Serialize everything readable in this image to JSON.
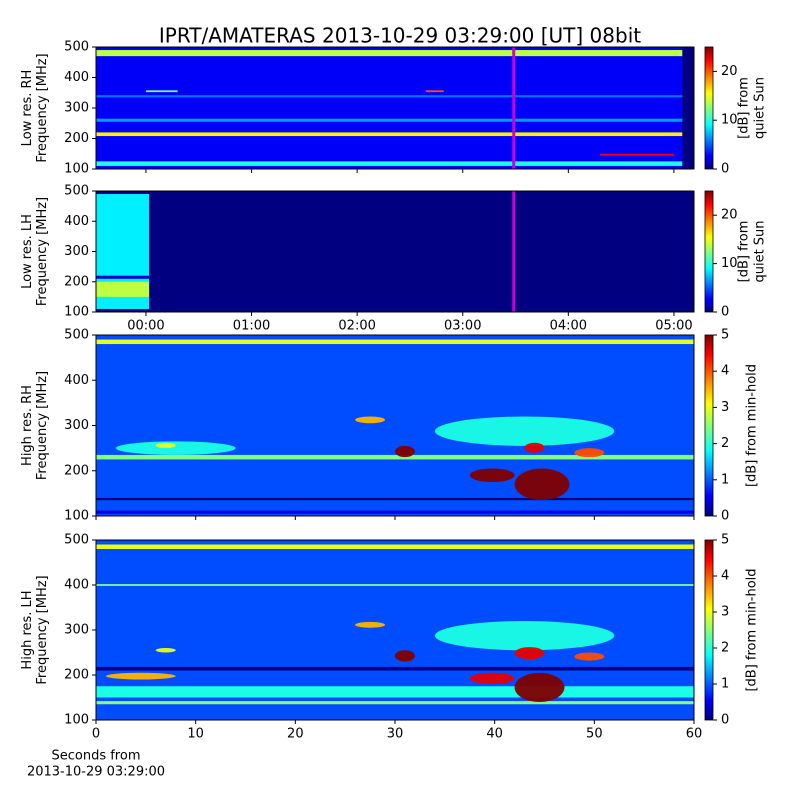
{
  "chart_data": [
    {
      "type": "spectrogram",
      "title": "IPRT/AMATERAS 2013-10-29 03:29:00 [UT]   08bit",
      "ylabel": [
        "Low res. RH",
        "Frequency [MHz]"
      ],
      "xlim": [
        -0.473,
        5.19
      ],
      "xticks": [
        0,
        1,
        2,
        3,
        4,
        5
      ],
      "xtick_labels": false,
      "ylim": [
        100,
        500
      ],
      "yticks": [
        100,
        200,
        300,
        400,
        500
      ],
      "background": 3,
      "marker_x": 3.483,
      "marker_color": "#cc00cc",
      "colorbar": {
        "label": [
          "[dB] from",
          "quiet Sun"
        ],
        "lim": [
          0,
          25
        ],
        "ticks": [
          0,
          10,
          20
        ]
      },
      "cells": [
        {
          "x": [
            -0.473,
            5.08
          ],
          "y": [
            470,
            490
          ],
          "value": 14
        },
        {
          "x": [
            -0.473,
            5.08
          ],
          "y": [
            208,
            220
          ],
          "value": 16
        },
        {
          "x": [
            -0.473,
            5.08
          ],
          "y": [
            110,
            125
          ],
          "value": 10
        },
        {
          "x": [
            -0.473,
            5.08
          ],
          "y": [
            255,
            265
          ],
          "value": 7
        },
        {
          "x": [
            -0.473,
            5.08
          ],
          "y": [
            335,
            342
          ],
          "value": 6
        },
        {
          "x": [
            0.0,
            0.3
          ],
          "y": [
            352,
            358
          ],
          "value": 12
        },
        {
          "x": [
            2.65,
            2.82
          ],
          "y": [
            352,
            358
          ],
          "value": 20
        },
        {
          "x": [
            4.3,
            5.0
          ],
          "y": [
            144,
            150
          ],
          "value": 22
        },
        {
          "x": [
            5.08,
            5.19
          ],
          "y": [
            100,
            500
          ],
          "value": 0
        }
      ]
    },
    {
      "type": "spectrogram",
      "ylabel": [
        "Low res. LH",
        "Frequency [MHz]"
      ],
      "xlim": [
        -0.473,
        5.19
      ],
      "xticks": [
        {
          "value": 0,
          "label": "00:00"
        },
        {
          "value": 1,
          "label": "01:00"
        },
        {
          "value": 2,
          "label": "02:00"
        },
        {
          "value": 3,
          "label": "03:00"
        },
        {
          "value": 4,
          "label": "04:00"
        },
        {
          "value": 5,
          "label": "05:00"
        }
      ],
      "xtick_labels": true,
      "ylim": [
        100,
        500
      ],
      "yticks": [
        100,
        200,
        300,
        400,
        500
      ],
      "background": 0,
      "marker_x": 3.483,
      "marker_color": "#cc00cc",
      "colorbar": {
        "label": [
          "[dB] from",
          "quiet Sun"
        ],
        "lim": [
          0,
          25
        ],
        "ticks": [
          0,
          10,
          20
        ]
      },
      "cells": [
        {
          "x": [
            -0.473,
            0.03
          ],
          "y": [
            110,
            490
          ],
          "value": 9
        },
        {
          "x": [
            -0.473,
            0.03
          ],
          "y": [
            150,
            200
          ],
          "value": 14
        },
        {
          "x": [
            -0.473,
            0.03
          ],
          "y": [
            210,
            220
          ],
          "value": 2
        }
      ]
    },
    {
      "type": "spectrogram",
      "ylabel": [
        "High res. RH",
        "Frequency [MHz]"
      ],
      "xlim": [
        0,
        60
      ],
      "xticks": [
        0,
        10,
        20,
        30,
        40,
        50,
        60
      ],
      "xtick_labels": false,
      "ylim": [
        100,
        500
      ],
      "yticks": [
        100,
        200,
        300,
        400,
        500
      ],
      "background": 1,
      "colorbar": {
        "label": [
          "[dB] from min-hold"
        ],
        "lim": [
          0,
          5
        ],
        "ticks": [
          0,
          1,
          2,
          3,
          4,
          5
        ]
      },
      "cells": [
        {
          "x": [
            0,
            60
          ],
          "y": [
            480,
            490
          ],
          "value": 3
        },
        {
          "x": [
            0,
            60
          ],
          "y": [
            225,
            235
          ],
          "value": 2.5
        },
        {
          "x": [
            0,
            60
          ],
          "y": [
            135,
            140
          ],
          "value": 0
        },
        {
          "x": [
            0,
            60
          ],
          "y": [
            105,
            112
          ],
          "value": 0.5
        },
        {
          "x": [
            34,
            52
          ],
          "y": [
            255,
            320
          ],
          "value": 2
        },
        {
          "x": [
            2,
            14
          ],
          "y": [
            235,
            265
          ],
          "value": 2
        },
        {
          "x": [
            42,
            47.5
          ],
          "y": [
            135,
            205
          ],
          "value": 5
        },
        {
          "x": [
            37.5,
            42
          ],
          "y": [
            175,
            205
          ],
          "value": 5
        },
        {
          "x": [
            30,
            32
          ],
          "y": [
            230,
            255
          ],
          "value": 5
        },
        {
          "x": [
            43,
            45
          ],
          "y": [
            240,
            262
          ],
          "value": 4.5
        },
        {
          "x": [
            26,
            29
          ],
          "y": [
            305,
            320
          ],
          "value": 3.5
        },
        {
          "x": [
            48,
            51
          ],
          "y": [
            230,
            250
          ],
          "value": 4
        },
        {
          "x": [
            6,
            8
          ],
          "y": [
            250,
            262
          ],
          "value": 3
        }
      ]
    },
    {
      "type": "spectrogram",
      "ylabel": [
        "High res. LH",
        "Frequency [MHz]"
      ],
      "xlabel": [
        "Seconds from",
        "2013-10-29 03:29:00"
      ],
      "xlim": [
        0,
        60
      ],
      "xticks": [
        0,
        10,
        20,
        30,
        40,
        50,
        60
      ],
      "xtick_labels": true,
      "ylim": [
        100,
        500
      ],
      "yticks": [
        100,
        200,
        300,
        400,
        500
      ],
      "background": 1,
      "colorbar": {
        "label": [
          "[dB] from min-hold"
        ],
        "lim": [
          0,
          5
        ],
        "ticks": [
          0,
          1,
          2,
          3,
          4,
          5
        ]
      },
      "cells": [
        {
          "x": [
            0,
            60
          ],
          "y": [
            480,
            490
          ],
          "value": 3
        },
        {
          "x": [
            0,
            60
          ],
          "y": [
            398,
            402
          ],
          "value": 2.5
        },
        {
          "x": [
            0,
            60
          ],
          "y": [
            210,
            218
          ],
          "value": 0
        },
        {
          "x": [
            0,
            60
          ],
          "y": [
            135,
            142
          ],
          "value": 2.5
        },
        {
          "x": [
            0,
            60
          ],
          "y": [
            150,
            175
          ],
          "value": 2
        },
        {
          "x": [
            34,
            52
          ],
          "y": [
            255,
            320
          ],
          "value": 2
        },
        {
          "x": [
            42,
            47
          ],
          "y": [
            140,
            205
          ],
          "value": 5
        },
        {
          "x": [
            37.5,
            42
          ],
          "y": [
            180,
            205
          ],
          "value": 4.5
        },
        {
          "x": [
            30,
            32
          ],
          "y": [
            230,
            255
          ],
          "value": 5
        },
        {
          "x": [
            42,
            45
          ],
          "y": [
            235,
            262
          ],
          "value": 4.5
        },
        {
          "x": [
            26,
            29
          ],
          "y": [
            305,
            318
          ],
          "value": 3.5
        },
        {
          "x": [
            48,
            51
          ],
          "y": [
            232,
            250
          ],
          "value": 4
        },
        {
          "x": [
            6,
            8
          ],
          "y": [
            250,
            260
          ],
          "value": 3
        },
        {
          "x": [
            1,
            8
          ],
          "y": [
            190,
            205
          ],
          "value": 3.5
        }
      ]
    }
  ]
}
